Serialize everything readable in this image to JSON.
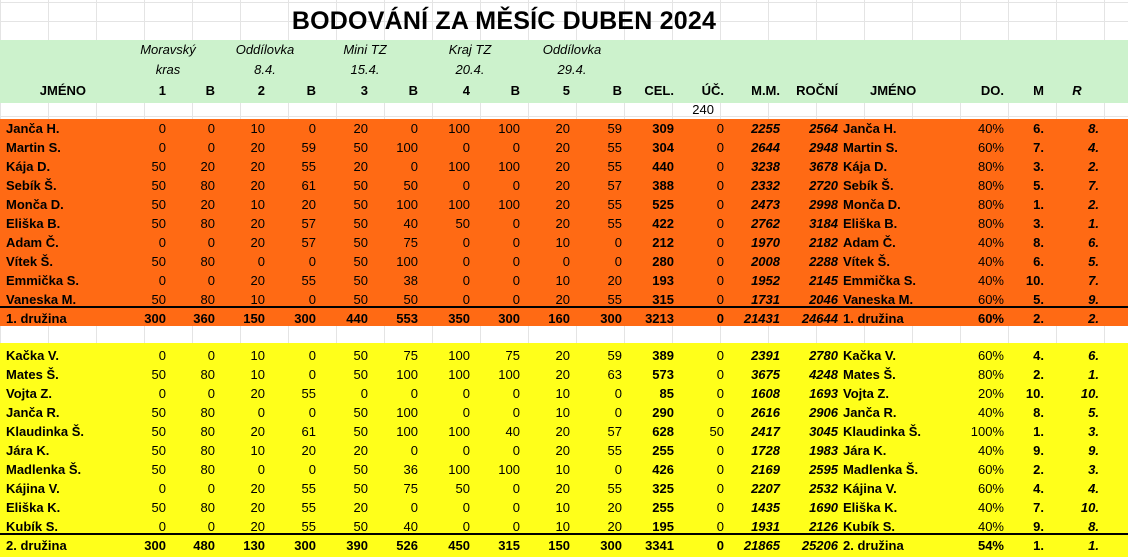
{
  "title": "BODOVÁNÍ ZA MĚSÍC DUBEN 2024",
  "competitions": [
    {
      "name": "Moravský",
      "name2": "kras",
      "date": ""
    },
    {
      "name": "Oddílovka",
      "name2": "",
      "date": "8.4."
    },
    {
      "name": "Mini TZ",
      "name2": "",
      "date": "15.4."
    },
    {
      "name": "Kraj TZ",
      "name2": "",
      "date": "20.4."
    },
    {
      "name": "Oddílovka",
      "name2": "",
      "date": "29.4."
    }
  ],
  "columns": [
    "JMÉNO",
    "1",
    "B",
    "2",
    "B",
    "3",
    "B",
    "4",
    "B",
    "5",
    "B",
    "CEL.",
    "ÚČ.",
    "M.M.",
    "ROČNÍ",
    "JMÉNO",
    "DO.",
    "M",
    "R"
  ],
  "uc_note": "240",
  "teams": [
    {
      "color": "#ff6a14",
      "rows": [
        [
          "Janča H.",
          "0",
          "0",
          "10",
          "0",
          "20",
          "0",
          "100",
          "100",
          "20",
          "59",
          "309",
          "0",
          "2255",
          "2564",
          "Janča H.",
          "40%",
          "6.",
          "8."
        ],
        [
          "Martin S.",
          "0",
          "0",
          "20",
          "59",
          "50",
          "100",
          "0",
          "0",
          "20",
          "55",
          "304",
          "0",
          "2644",
          "2948",
          "Martin S.",
          "60%",
          "7.",
          "4."
        ],
        [
          "Kája D.",
          "50",
          "20",
          "20",
          "55",
          "20",
          "0",
          "100",
          "100",
          "20",
          "55",
          "440",
          "0",
          "3238",
          "3678",
          "Kája D.",
          "80%",
          "3.",
          "2."
        ],
        [
          "Sebík Š.",
          "50",
          "80",
          "20",
          "61",
          "50",
          "50",
          "0",
          "0",
          "20",
          "57",
          "388",
          "0",
          "2332",
          "2720",
          "Sebík Š.",
          "80%",
          "5.",
          "7."
        ],
        [
          "Monča D.",
          "50",
          "20",
          "10",
          "20",
          "50",
          "100",
          "100",
          "100",
          "20",
          "55",
          "525",
          "0",
          "2473",
          "2998",
          "Monča D.",
          "80%",
          "1.",
          "2."
        ],
        [
          "Eliška B.",
          "50",
          "80",
          "20",
          "57",
          "50",
          "40",
          "50",
          "0",
          "20",
          "55",
          "422",
          "0",
          "2762",
          "3184",
          "Eliška B.",
          "80%",
          "3.",
          "1."
        ],
        [
          "Adam Č.",
          "0",
          "0",
          "20",
          "57",
          "50",
          "75",
          "0",
          "0",
          "10",
          "0",
          "212",
          "0",
          "1970",
          "2182",
          "Adam Č.",
          "40%",
          "8.",
          "6."
        ],
        [
          "Vítek Š.",
          "50",
          "80",
          "0",
          "0",
          "50",
          "100",
          "0",
          "0",
          "0",
          "0",
          "280",
          "0",
          "2008",
          "2288",
          "Vítek Š.",
          "40%",
          "6.",
          "5."
        ],
        [
          "Emmička S.",
          "0",
          "0",
          "20",
          "55",
          "50",
          "38",
          "0",
          "0",
          "10",
          "20",
          "193",
          "0",
          "1952",
          "2145",
          "Emmička S.",
          "40%",
          "10.",
          "7."
        ],
        [
          "Vaneska M.",
          "50",
          "80",
          "10",
          "0",
          "50",
          "50",
          "0",
          "0",
          "20",
          "55",
          "315",
          "0",
          "1731",
          "2046",
          "Vaneska M.",
          "60%",
          "5.",
          "9."
        ]
      ],
      "total": [
        "1. družina",
        "300",
        "360",
        "150",
        "300",
        "440",
        "553",
        "350",
        "300",
        "160",
        "300",
        "3213",
        "0",
        "21431",
        "24644",
        "1. družina",
        "60%",
        "2.",
        "2."
      ]
    },
    {
      "color": "#ffff1a",
      "rows": [
        [
          "Kačka V.",
          "0",
          "0",
          "10",
          "0",
          "50",
          "75",
          "100",
          "75",
          "20",
          "59",
          "389",
          "0",
          "2391",
          "2780",
          "Kačka V.",
          "60%",
          "4.",
          "6."
        ],
        [
          "Mates Š.",
          "50",
          "80",
          "10",
          "0",
          "50",
          "100",
          "100",
          "100",
          "20",
          "63",
          "573",
          "0",
          "3675",
          "4248",
          "Mates Š.",
          "80%",
          "2.",
          "1."
        ],
        [
          "Vojta Z.",
          "0",
          "0",
          "20",
          "55",
          "0",
          "0",
          "0",
          "0",
          "10",
          "0",
          "85",
          "0",
          "1608",
          "1693",
          "Vojta Z.",
          "20%",
          "10.",
          "10."
        ],
        [
          "Janča R.",
          "50",
          "80",
          "0",
          "0",
          "50",
          "100",
          "0",
          "0",
          "10",
          "0",
          "290",
          "0",
          "2616",
          "2906",
          "Janča R.",
          "40%",
          "8.",
          "5."
        ],
        [
          "Klaudinka Š.",
          "50",
          "80",
          "20",
          "61",
          "50",
          "100",
          "100",
          "40",
          "20",
          "57",
          "628",
          "50",
          "2417",
          "3045",
          "Klaudinka Š.",
          "100%",
          "1.",
          "3."
        ],
        [
          "Jára K.",
          "50",
          "80",
          "10",
          "20",
          "20",
          "0",
          "0",
          "0",
          "20",
          "55",
          "255",
          "0",
          "1728",
          "1983",
          "Jára K.",
          "40%",
          "9.",
          "9."
        ],
        [
          "Madlenka Š.",
          "50",
          "80",
          "0",
          "0",
          "50",
          "36",
          "100",
          "100",
          "10",
          "0",
          "426",
          "0",
          "2169",
          "2595",
          "Madlenka Š.",
          "60%",
          "2.",
          "3."
        ],
        [
          "Kájina V.",
          "0",
          "0",
          "20",
          "55",
          "50",
          "75",
          "50",
          "0",
          "20",
          "55",
          "325",
          "0",
          "2207",
          "2532",
          "Kájina V.",
          "60%",
          "4.",
          "4."
        ],
        [
          "Eliška K.",
          "50",
          "80",
          "20",
          "55",
          "20",
          "0",
          "0",
          "0",
          "10",
          "20",
          "255",
          "0",
          "1435",
          "1690",
          "Eliška K.",
          "40%",
          "7.",
          "10."
        ],
        [
          "Kubík S.",
          "0",
          "0",
          "20",
          "55",
          "50",
          "40",
          "0",
          "0",
          "10",
          "20",
          "195",
          "0",
          "1931",
          "2126",
          "Kubík S.",
          "40%",
          "9.",
          "8."
        ]
      ],
      "total": [
        "2. družina",
        "300",
        "480",
        "130",
        "300",
        "390",
        "526",
        "450",
        "315",
        "150",
        "300",
        "3341",
        "0",
        "21865",
        "25206",
        "2. družina",
        "54%",
        "1.",
        "1."
      ]
    }
  ]
}
